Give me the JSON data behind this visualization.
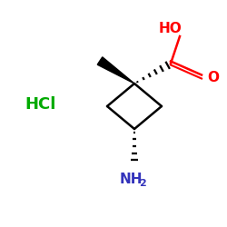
{
  "bg_color": "#ffffff",
  "hcl_color": "#00aa00",
  "carboxyl_color": "#ff0000",
  "nh2_color": "#3333bb",
  "bond_color": "#000000",
  "hcl_text": "HCl",
  "ho_text": "HO",
  "o_text": "O",
  "nh2_text": "NH",
  "nh2_sub": "2",
  "figsize": [
    2.5,
    2.5
  ],
  "dpi": 100
}
